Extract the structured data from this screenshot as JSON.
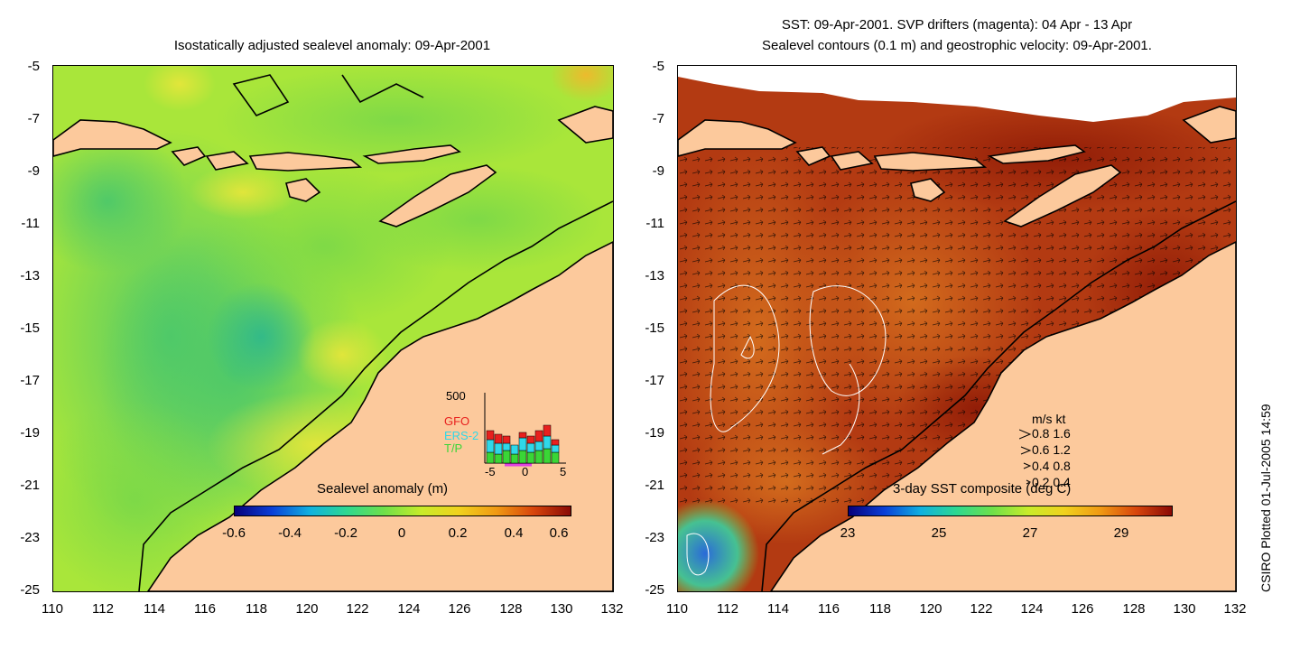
{
  "left_panel": {
    "title": "Isostatically adjusted sealevel anomaly: 09-Apr-2001",
    "y_ticks": [
      "-5",
      "-7",
      "-9",
      "-11",
      "-13",
      "-15",
      "-17",
      "-19",
      "-21",
      "-23",
      "-25"
    ],
    "x_ticks": [
      "110",
      "112",
      "114",
      "116",
      "118",
      "120",
      "122",
      "124",
      "126",
      "128",
      "130",
      "132"
    ],
    "colorbar": {
      "title": "Sealevel anomaly (m)",
      "labels": [
        "-0.6",
        "-0.4",
        "-0.2",
        "0",
        "0.2",
        "0.4",
        "0.6"
      ]
    },
    "inset": {
      "y_label": "500",
      "x_labels": [
        "-5",
        "0",
        "5"
      ],
      "legend": [
        {
          "name": "GFO",
          "color": "#e8201e"
        },
        {
          "name": "ERS-2",
          "color": "#2fd8e8"
        },
        {
          "name": "T/P",
          "color": "#3ad636"
        }
      ]
    }
  },
  "right_panel": {
    "title_line1": "SST: 09-Apr-2001. SVP drifters (magenta): 04 Apr - 13 Apr",
    "title_line2": "Sealevel contours (0.1 m) and geostrophic velocity: 09-Apr-2001.",
    "y_ticks": [
      "-5",
      "-7",
      "-9",
      "-11",
      "-13",
      "-15",
      "-17",
      "-19",
      "-21",
      "-23",
      "-25"
    ],
    "x_ticks": [
      "110",
      "112",
      "114",
      "116",
      "118",
      "120",
      "122",
      "124",
      "126",
      "128",
      "130",
      "132"
    ],
    "colorbar": {
      "title": "3-day SST composite (deg C)",
      "labels": [
        "23",
        "25",
        "27",
        "29"
      ]
    },
    "velocity_legend": {
      "header": "m/s  kt",
      "rows": [
        "0.8  1.6",
        "0.6  1.2",
        "0.4  0.8",
        "0.2  0.4"
      ]
    }
  },
  "credit": "CSIRO Plotted 01-Jul-2005 14:59",
  "colors": {
    "land": "#fcc99c",
    "sla_ocean": "#a9e63a",
    "sst_ocean": "#b33a12",
    "coastline": "#000000"
  }
}
